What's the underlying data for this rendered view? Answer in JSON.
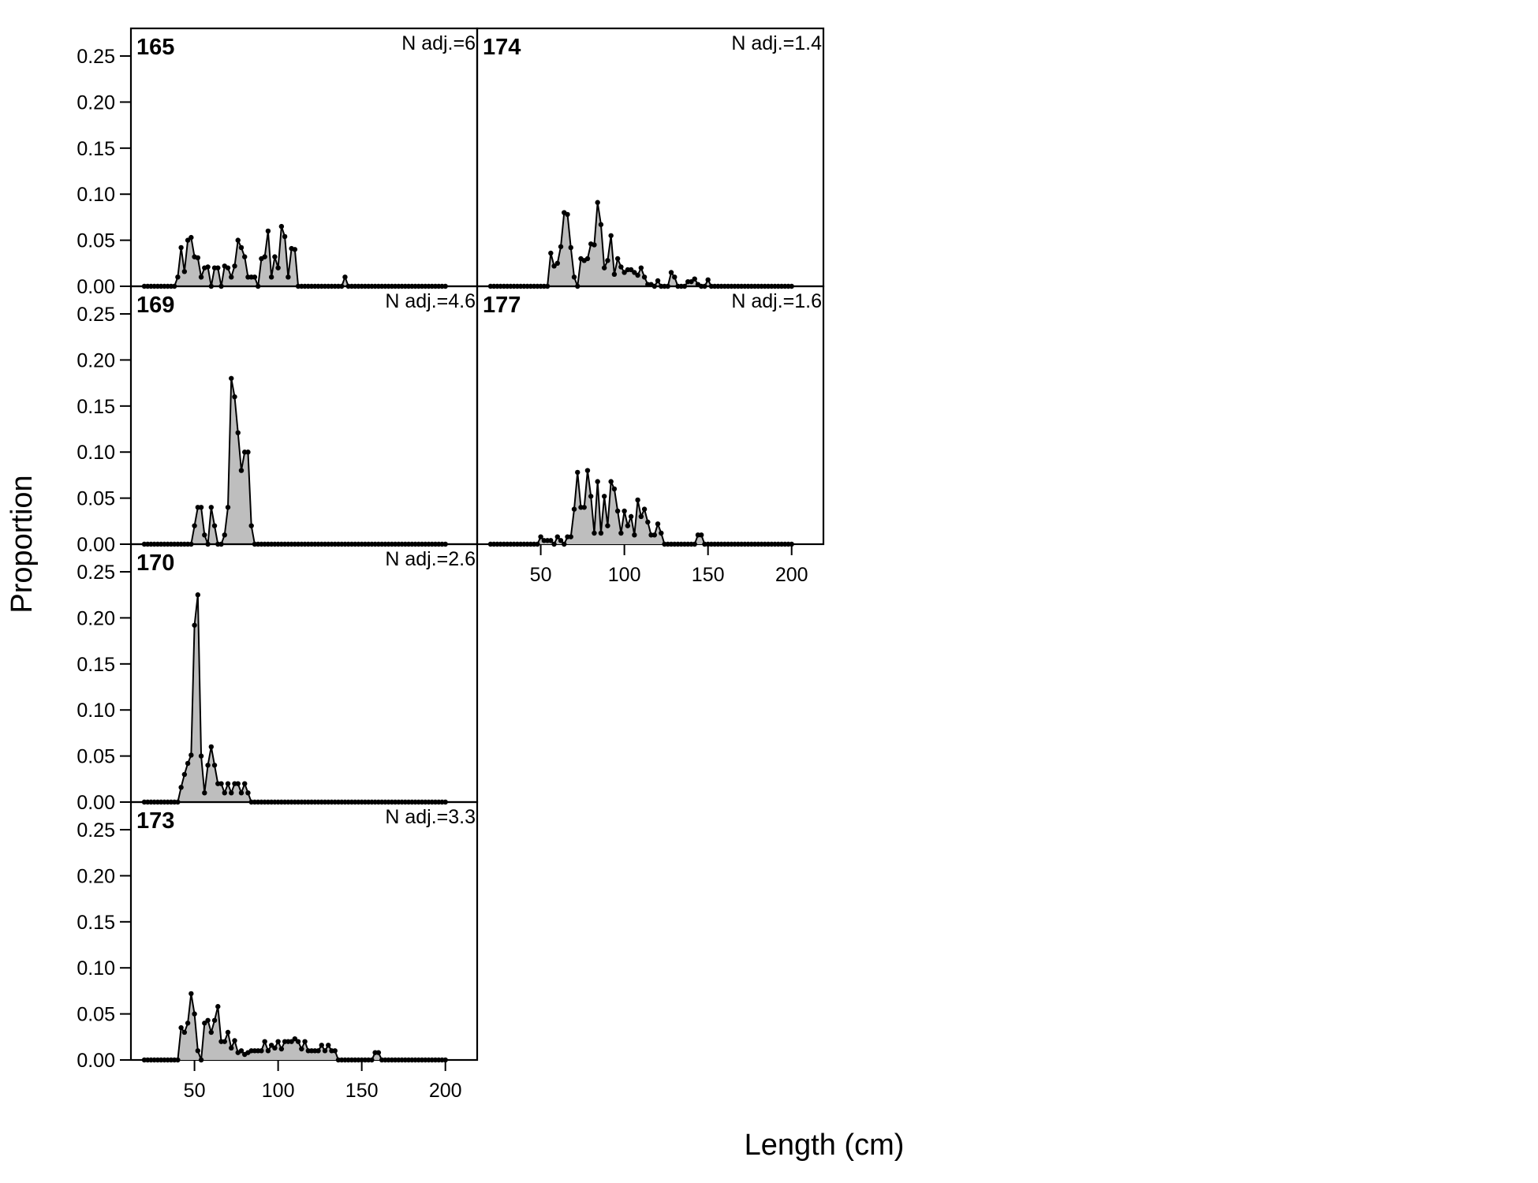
{
  "chart_data": {
    "type": "area",
    "xlabel": "Length (cm)",
    "ylabel": "Proportion",
    "xlim": [
      12,
      219
    ],
    "ylim": [
      0,
      0.28
    ],
    "x_ticks": [
      50,
      100,
      150,
      200
    ],
    "y_ticks": [
      0.0,
      0.05,
      0.1,
      0.15,
      0.2,
      0.25
    ],
    "y_tick_labels": [
      "0.00",
      "0.05",
      "0.10",
      "0.15",
      "0.20",
      "0.25"
    ],
    "x_tick_labels": [
      "50",
      "100",
      "150",
      "200"
    ],
    "fill_color": "#bebebe",
    "line_color": "#000000",
    "x_start": 20,
    "x_step": 2,
    "panels": [
      {
        "id": "165",
        "n_label": "N adj.=6",
        "col": 0,
        "row": 0,
        "values": [
          0,
          0,
          0,
          0,
          0,
          0,
          0,
          0,
          0,
          0,
          0.01,
          0.042,
          0.016,
          0.05,
          0.053,
          0.032,
          0.031,
          0.01,
          0.02,
          0.021,
          0,
          0.02,
          0.02,
          0,
          0.022,
          0.02,
          0.01,
          0.022,
          0.05,
          0.042,
          0.032,
          0.01,
          0.01,
          0.01,
          0,
          0.03,
          0.032,
          0.06,
          0.01,
          0.032,
          0.02,
          0.065,
          0.054,
          0.01,
          0.041,
          0.04,
          0,
          0,
          0,
          0,
          0,
          0,
          0,
          0,
          0,
          0,
          0,
          0,
          0,
          0,
          0.01,
          0,
          0,
          0,
          0,
          0,
          0,
          0,
          0,
          0,
          0,
          0,
          0,
          0,
          0,
          0,
          0,
          0,
          0,
          0,
          0,
          0,
          0,
          0,
          0,
          0,
          0,
          0,
          0,
          0,
          0
        ]
      },
      {
        "id": "169",
        "n_label": "N adj.=4.6",
        "col": 0,
        "row": 1,
        "values": [
          0,
          0,
          0,
          0,
          0,
          0,
          0,
          0,
          0,
          0,
          0,
          0,
          0,
          0,
          0,
          0.02,
          0.04,
          0.04,
          0.01,
          0,
          0.04,
          0.02,
          0,
          0,
          0.01,
          0.04,
          0.18,
          0.16,
          0.121,
          0.08,
          0.1,
          0.1,
          0.02,
          0,
          0,
          0,
          0,
          0,
          0,
          0,
          0,
          0,
          0,
          0,
          0,
          0,
          0,
          0,
          0,
          0,
          0,
          0,
          0,
          0,
          0,
          0,
          0,
          0,
          0,
          0,
          0,
          0,
          0,
          0,
          0,
          0,
          0,
          0,
          0,
          0,
          0,
          0,
          0,
          0,
          0,
          0,
          0,
          0,
          0,
          0,
          0,
          0,
          0,
          0,
          0,
          0,
          0,
          0,
          0,
          0,
          0
        ]
      },
      {
        "id": "170",
        "n_label": "N adj.=2.6",
        "col": 0,
        "row": 2,
        "values": [
          0,
          0,
          0,
          0,
          0,
          0,
          0,
          0,
          0,
          0,
          0,
          0.016,
          0.03,
          0.042,
          0.051,
          0.192,
          0.225,
          0.05,
          0.01,
          0.04,
          0.06,
          0.04,
          0.02,
          0.02,
          0.01,
          0.02,
          0.01,
          0.02,
          0.02,
          0.01,
          0.02,
          0.01,
          0,
          0,
          0,
          0,
          0,
          0,
          0,
          0,
          0,
          0,
          0,
          0,
          0,
          0,
          0,
          0,
          0,
          0,
          0,
          0,
          0,
          0,
          0,
          0,
          0,
          0,
          0,
          0,
          0,
          0,
          0,
          0,
          0,
          0,
          0,
          0,
          0,
          0,
          0,
          0,
          0,
          0,
          0,
          0,
          0,
          0,
          0,
          0,
          0,
          0,
          0,
          0,
          0,
          0,
          0,
          0,
          0,
          0,
          0
        ]
      },
      {
        "id": "173",
        "n_label": "N adj.=3.3",
        "col": 0,
        "row": 3,
        "values": [
          0,
          0,
          0,
          0,
          0,
          0,
          0,
          0,
          0,
          0,
          0,
          0.035,
          0.03,
          0.04,
          0.072,
          0.05,
          0.01,
          0,
          0.04,
          0.043,
          0.03,
          0.043,
          0.058,
          0.02,
          0.02,
          0.03,
          0.013,
          0.021,
          0.008,
          0.01,
          0.006,
          0.008,
          0.01,
          0.01,
          0.01,
          0.01,
          0.02,
          0.01,
          0.016,
          0.013,
          0.02,
          0.012,
          0.02,
          0.02,
          0.02,
          0.023,
          0.02,
          0.012,
          0.02,
          0.01,
          0.01,
          0.01,
          0.01,
          0.016,
          0.01,
          0.016,
          0.01,
          0.01,
          0,
          0,
          0,
          0,
          0,
          0,
          0,
          0,
          0,
          0,
          0,
          0.008,
          0.008,
          0,
          0,
          0,
          0,
          0,
          0,
          0,
          0,
          0,
          0,
          0,
          0,
          0,
          0,
          0,
          0,
          0,
          0,
          0,
          0
        ]
      },
      {
        "id": "174",
        "n_label": "N adj.=1.4",
        "col": 1,
        "row": 0,
        "values": [
          0,
          0,
          0,
          0,
          0,
          0,
          0,
          0,
          0,
          0,
          0,
          0,
          0,
          0,
          0,
          0,
          0,
          0,
          0.036,
          0.022,
          0.025,
          0.043,
          0.08,
          0.078,
          0.042,
          0.01,
          0,
          0.03,
          0.028,
          0.03,
          0.046,
          0.045,
          0.091,
          0.067,
          0.02,
          0.028,
          0.055,
          0.013,
          0.03,
          0.021,
          0.015,
          0.018,
          0.018,
          0.015,
          0.012,
          0.02,
          0.01,
          0.002,
          0.002,
          0,
          0.006,
          0,
          0,
          0,
          0.015,
          0.01,
          0,
          0,
          0,
          0.005,
          0.005,
          0.008,
          0.002,
          0,
          0,
          0.007,
          0,
          0,
          0,
          0,
          0,
          0,
          0,
          0,
          0,
          0,
          0,
          0,
          0,
          0,
          0,
          0,
          0,
          0,
          0,
          0,
          0,
          0,
          0,
          0,
          0
        ]
      },
      {
        "id": "177",
        "n_label": "N adj.=1.6",
        "col": 1,
        "row": 1,
        "values": [
          0,
          0,
          0,
          0,
          0,
          0,
          0,
          0,
          0,
          0,
          0,
          0,
          0,
          0,
          0,
          0.008,
          0.004,
          0.004,
          0.004,
          0,
          0.008,
          0.004,
          0,
          0.008,
          0.008,
          0.038,
          0.078,
          0.04,
          0.04,
          0.08,
          0.052,
          0.012,
          0.068,
          0.012,
          0.052,
          0.02,
          0.068,
          0.06,
          0.036,
          0.012,
          0.036,
          0.02,
          0.03,
          0.01,
          0.048,
          0.03,
          0.038,
          0.024,
          0.01,
          0.01,
          0.022,
          0.012,
          0,
          0,
          0,
          0,
          0,
          0,
          0,
          0,
          0,
          0,
          0.01,
          0.01,
          0,
          0,
          0,
          0,
          0,
          0,
          0,
          0,
          0,
          0,
          0,
          0,
          0,
          0,
          0,
          0,
          0,
          0,
          0,
          0,
          0,
          0,
          0,
          0,
          0,
          0,
          0
        ]
      }
    ]
  }
}
